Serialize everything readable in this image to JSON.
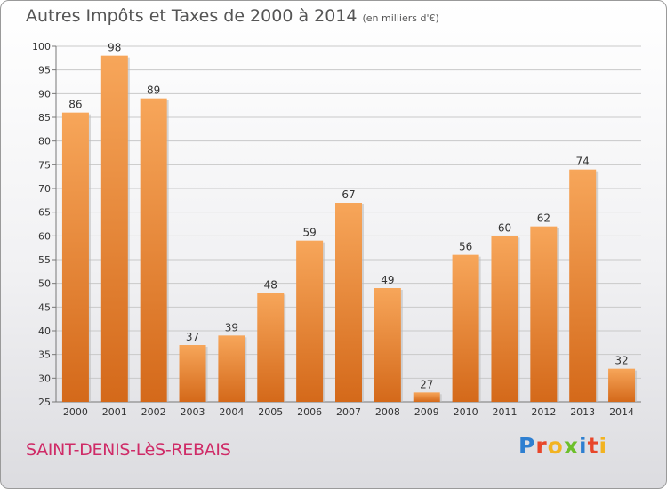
{
  "header": {
    "title": "Autres Impôts et Taxes de 2000 à 2014",
    "unit": "(en milliers d'€)"
  },
  "footer": {
    "commune": "SAINT-DENIS-LèS-REBAIS",
    "logo_letters": [
      "P",
      "r",
      "o",
      "x",
      "i",
      "t",
      "i"
    ],
    "logo_colors": [
      "#2e7fd1",
      "#e8462a",
      "#f2b321",
      "#6cbf2a",
      "#2e7fd1",
      "#e8462a",
      "#f2b321"
    ]
  },
  "colors": {
    "bar_light": "#f7a65a",
    "bar_dark": "#d4691a",
    "grid": "#c9c9c9"
  },
  "chart_data": {
    "type": "bar",
    "title": "Autres Impôts et Taxes de 2000 à 2014",
    "subtitle": "(en milliers d'€)",
    "categories": [
      "2000",
      "2001",
      "2002",
      "2003",
      "2004",
      "2005",
      "2006",
      "2007",
      "2008",
      "2009",
      "2010",
      "2011",
      "2012",
      "2013",
      "2014"
    ],
    "values": [
      86,
      98,
      89,
      37,
      39,
      48,
      59,
      67,
      49,
      27,
      56,
      60,
      62,
      74,
      32
    ],
    "ylim": [
      25,
      100
    ],
    "yticks": [
      25,
      30,
      35,
      40,
      45,
      50,
      55,
      60,
      65,
      70,
      75,
      80,
      85,
      90,
      95,
      100
    ],
    "grid": true,
    "xlabel": "",
    "ylabel": ""
  }
}
